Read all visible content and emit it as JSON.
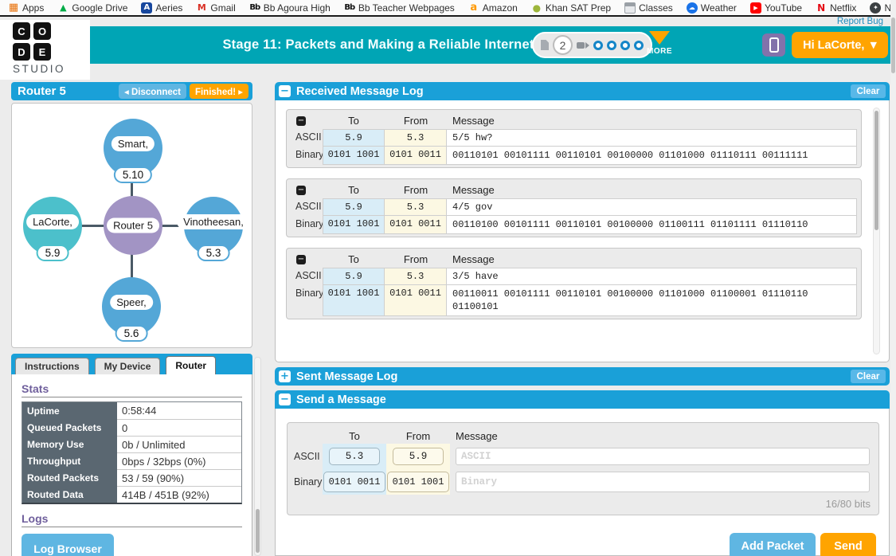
{
  "colors": {
    "teal_header": "#00a5b5",
    "section_blue": "#1aa0d8",
    "light_blue_button": "#5fb6e2",
    "orange_button": "#ffa400",
    "purple_button": "#8272ab",
    "heading_purple": "#6f5f9c",
    "stats_label_bg": "#5a6771",
    "node_blue": "#54a7d7",
    "node_self_teal": "#4cc0cb",
    "router_purple": "#a294c4",
    "to_cell_blue": "#d9edf7",
    "from_cell_cream": "#fcf8e3"
  },
  "bookmarks_bar": {
    "items": [
      {
        "label": "Apps",
        "icon": "apps-grid-icon"
      },
      {
        "label": "Google Drive",
        "icon": "drive-icon"
      },
      {
        "label": "Aeries",
        "icon": "aeries-icon"
      },
      {
        "label": "Gmail",
        "icon": "gmail-icon"
      },
      {
        "label": "Bb Agoura High",
        "icon": "blackboard-icon"
      },
      {
        "label": "Bb Teacher Webpages",
        "icon": "blackboard-icon"
      },
      {
        "label": "Amazon",
        "icon": "amazon-icon"
      },
      {
        "label": "Khan SAT Prep",
        "icon": "khan-icon"
      },
      {
        "label": "Classes",
        "icon": "classes-icon"
      },
      {
        "label": "Weather",
        "icon": "weather-icon"
      },
      {
        "label": "YouTube",
        "icon": "youtube-icon"
      },
      {
        "label": "Netflix",
        "icon": "netflix-icon"
      },
      {
        "label": "Naviance",
        "icon": "naviance-icon"
      }
    ],
    "report_bug_label": "Report Bug"
  },
  "header": {
    "logo_letters": [
      "C",
      "O",
      "D",
      "E"
    ],
    "logo_studio": "STUDIO",
    "title": "Stage 11: Packets and Making a Reliable Internet",
    "progress": {
      "current_page": "2",
      "bubbles": [
        "level",
        "level",
        "level",
        "level"
      ]
    },
    "more_label": "MORE",
    "user_button_label": "Hi LaCorte,",
    "user_button_caret": "▼"
  },
  "left_panel": {
    "title": "Router 5",
    "disconnect_label": "◂ Disconnect",
    "finished_label": "Finished! ▸",
    "network": {
      "center": {
        "name": "Router 5"
      },
      "nodes": [
        {
          "name": "Smart,",
          "address": "5.10",
          "position": "top",
          "variant": "peer"
        },
        {
          "name": "LaCorte,",
          "address": "5.9",
          "position": "left",
          "variant": "self"
        },
        {
          "name": "Vinotheesan,",
          "address": "5.3",
          "position": "right",
          "variant": "peer"
        },
        {
          "name": "Speer,",
          "address": "5.6",
          "position": "bottom",
          "variant": "peer"
        }
      ]
    },
    "tabs": [
      {
        "label": "Instructions",
        "state": "inactive"
      },
      {
        "label": "My Device",
        "state": "inactive"
      },
      {
        "label": "Router",
        "state": "active"
      }
    ],
    "stats": {
      "heading": "Stats",
      "rows": [
        {
          "label": "Uptime",
          "value": "0:58:44"
        },
        {
          "label": "Queued Packets",
          "value": "0"
        },
        {
          "label": "Memory Use",
          "value": "0b / Unlimited"
        },
        {
          "label": "Throughput",
          "value": "0bps / 32bps (0%)"
        },
        {
          "label": "Routed Packets",
          "value": "53 / 59 (90%)"
        },
        {
          "label": "Routed Data",
          "value": "414B / 451B (92%)"
        }
      ]
    },
    "logs": {
      "heading": "Logs",
      "browser_button_label": "Log Browser"
    }
  },
  "received_log": {
    "title": "Received Message Log",
    "clear_label": "Clear",
    "collapse_glyph": "−",
    "entry_collapse_glyph": "−",
    "columns": {
      "to": "To",
      "from": "From",
      "message": "Message"
    },
    "row_labels": {
      "ascii": "ASCII",
      "binary": "Binary"
    },
    "entries": [
      {
        "to_ascii": "5.9",
        "from_ascii": "5.3",
        "message_ascii": "5/5 hw?",
        "to_binary": "0101 1001",
        "from_binary": "0101 0011",
        "message_binary": "00110101 00101111 00110101 00100000 01101000 01110111 00111111"
      },
      {
        "to_ascii": "5.9",
        "from_ascii": "5.3",
        "message_ascii": "4/5 gov",
        "to_binary": "0101 1001",
        "from_binary": "0101 0011",
        "message_binary": "00110100 00101111 00110101 00100000 01100111 01101111 01110110"
      },
      {
        "to_ascii": "5.9",
        "from_ascii": "5.3",
        "message_ascii": "3/5 have",
        "to_binary": "0101 1001",
        "from_binary": "0101 0011",
        "message_binary": "00110011 00101111 00110101 00100000 01101000 01100001 01110110 01100101"
      }
    ]
  },
  "sent_log": {
    "title": "Sent Message Log",
    "clear_label": "Clear",
    "expand_glyph": "+"
  },
  "send_form": {
    "title": "Send a Message",
    "collapse_glyph": "−",
    "columns": {
      "to": "To",
      "from": "From",
      "message": "Message"
    },
    "row_labels": {
      "ascii": "ASCII",
      "binary": "Binary"
    },
    "to_ascii": "5.3",
    "from_ascii": "5.9",
    "to_binary": "0101 0011",
    "from_binary": "0101 1001",
    "ascii_placeholder": "ASCII",
    "binary_placeholder": "Binary",
    "bits_counter": "16/80 bits",
    "add_packet_label": "Add Packet",
    "send_label": "Send"
  }
}
